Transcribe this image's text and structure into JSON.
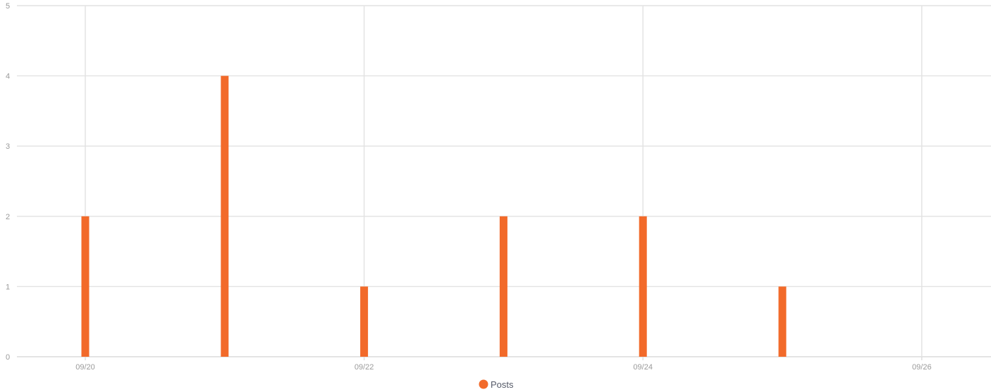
{
  "chart_data": {
    "type": "bar",
    "x": [
      "09/20",
      "09/21",
      "09/22",
      "09/23",
      "09/24",
      "09/25",
      "09/26"
    ],
    "x_tick_labels": [
      "09/20",
      "09/22",
      "09/24",
      "09/26"
    ],
    "series": [
      {
        "name": "Posts",
        "color": "#f26a2a",
        "values": [
          2,
          4,
          1,
          2,
          2,
          1,
          0
        ]
      }
    ],
    "y_ticks": [
      0,
      1,
      2,
      3,
      4,
      5
    ],
    "ylim": [
      0,
      5
    ],
    "grid": true,
    "legend_position": "bottom-center"
  }
}
